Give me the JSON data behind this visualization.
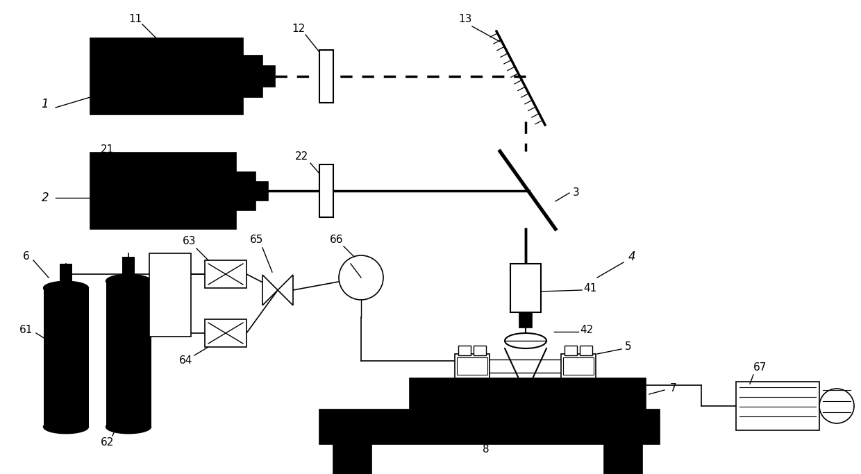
{
  "bg_color": "#ffffff",
  "lc": "#000000",
  "figsize": [
    12.4,
    6.83
  ],
  "dpi": 100,
  "lw_thick": 2.5,
  "lw_med": 1.5,
  "lw_thin": 1.0
}
